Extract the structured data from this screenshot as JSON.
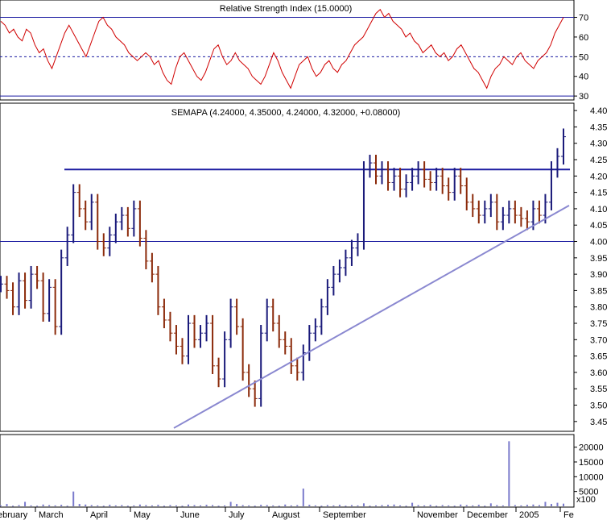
{
  "chart_data": [
    {
      "type": "line",
      "panel": "rsi",
      "title": "Relative Strength Index (15.0000)",
      "series": [
        {
          "name": "Relative Strength Index",
          "color": "#d00000",
          "values": [
            68,
            66,
            62,
            64,
            60,
            58,
            64,
            62,
            56,
            52,
            54,
            48,
            44,
            50,
            56,
            62,
            66,
            62,
            58,
            54,
            50,
            56,
            62,
            68,
            70,
            66,
            64,
            60,
            58,
            56,
            52,
            50,
            48,
            50,
            52,
            50,
            46,
            48,
            42,
            38,
            36,
            44,
            50,
            52,
            48,
            44,
            40,
            38,
            42,
            48,
            54,
            56,
            50,
            46,
            48,
            52,
            48,
            46,
            44,
            40,
            38,
            36,
            40,
            46,
            52,
            48,
            42,
            38,
            34,
            40,
            46,
            48,
            50,
            44,
            40,
            42,
            46,
            48,
            44,
            42,
            46,
            48,
            52,
            56,
            58,
            60,
            64,
            68,
            72,
            74,
            70,
            72,
            68,
            66,
            64,
            60,
            62,
            58,
            56,
            52,
            54,
            56,
            52,
            50,
            52,
            48,
            50,
            54,
            56,
            52,
            48,
            44,
            42,
            38,
            34,
            40,
            44,
            46,
            50,
            48,
            46,
            50,
            52,
            48,
            46,
            44,
            48,
            50,
            52,
            56,
            62,
            66,
            70
          ]
        }
      ],
      "ylim": [
        28,
        78
      ],
      "yticks": [
        30,
        40,
        50,
        60,
        70
      ],
      "ref_lines": [
        70,
        50,
        30
      ]
    },
    {
      "type": "line",
      "panel": "price",
      "style": "ohlc",
      "title": "SEMAPA (4.24000, 4.35000, 4.24000, 4.32000, +0.08000)",
      "series": [
        {
          "name": "SEMAPA",
          "values": [
            3.87,
            3.85,
            3.8,
            3.88,
            3.82,
            3.9,
            3.88,
            3.78,
            3.86,
            3.74,
            3.95,
            4.02,
            4.15,
            4.1,
            4.06,
            4.12,
            4.0,
            3.98,
            4.02,
            4.06,
            4.08,
            4.04,
            4.1,
            4.01,
            3.94,
            3.9,
            3.8,
            3.76,
            3.72,
            3.68,
            3.65,
            3.75,
            3.7,
            3.72,
            3.75,
            3.62,
            3.58,
            3.7,
            3.8,
            3.74,
            3.6,
            3.55,
            3.52,
            3.72,
            3.8,
            3.75,
            3.7,
            3.68,
            3.62,
            3.6,
            3.66,
            3.72,
            3.74,
            3.8,
            3.86,
            3.9,
            3.92,
            3.95,
            3.98,
            4.0,
            4.22,
            4.24,
            4.2,
            4.22,
            4.18,
            4.2,
            4.16,
            4.18,
            4.2,
            4.22,
            4.19,
            4.18,
            4.2,
            4.17,
            4.15,
            4.2,
            4.17,
            4.12,
            4.1,
            4.08,
            4.1,
            4.12,
            4.06,
            4.08,
            4.1,
            4.08,
            4.07,
            4.06,
            4.1,
            4.08,
            4.12,
            4.22,
            4.26,
            4.32
          ]
        }
      ],
      "ylim": [
        3.42,
        4.42
      ],
      "yticks": [
        3.45,
        3.5,
        3.55,
        3.6,
        3.65,
        3.7,
        3.75,
        3.8,
        3.85,
        3.9,
        3.95,
        4.0,
        4.05,
        4.1,
        4.15,
        4.2,
        4.25,
        4.3,
        4.35,
        4.4
      ],
      "resistance_line": 4.22,
      "support_line": 4.0,
      "trend_line": [
        {
          "x": "June",
          "y": 3.43
        },
        {
          "x": "2005",
          "y": 4.11
        }
      ]
    },
    {
      "type": "bar",
      "panel": "volume",
      "series": [
        {
          "name": "Volume",
          "values": [
            300,
            800,
            200,
            400,
            1500,
            300,
            200,
            600,
            400,
            300,
            500,
            200,
            5000,
            800,
            600,
            400,
            300,
            200,
            500,
            300,
            400,
            200,
            300,
            600,
            400,
            300,
            500,
            200,
            400,
            300,
            200,
            600,
            400,
            300,
            500,
            400,
            200,
            300,
            1500,
            800,
            400,
            300,
            200,
            500,
            400,
            300,
            200,
            600,
            300,
            400,
            6000,
            500,
            300,
            200,
            400,
            300,
            500,
            200,
            400,
            300,
            1000,
            200,
            300,
            400,
            500,
            600,
            300,
            200,
            1200,
            400,
            300,
            500,
            200,
            400,
            300,
            200,
            600,
            400,
            300,
            500,
            200,
            1000,
            400,
            300,
            22000,
            400,
            300,
            500,
            600,
            400,
            1500,
            800,
            1200,
            900
          ]
        }
      ],
      "ylim": [
        0,
        24000
      ],
      "yticks": [
        5000,
        10000,
        15000,
        20000
      ],
      "unit_label": "x100"
    }
  ],
  "x_axis": {
    "labels": [
      "ebruary",
      "March",
      "April",
      "May",
      "June",
      "July",
      "August",
      "September",
      "November",
      "December",
      "2005",
      "Fe"
    ]
  },
  "colors": {
    "up": "#1a1a7a",
    "down": "#8b2a0a",
    "rsi": "#d00000",
    "hline": "#1a1aa0",
    "trend": "#8a88d0",
    "volume": "#7a7acc"
  }
}
